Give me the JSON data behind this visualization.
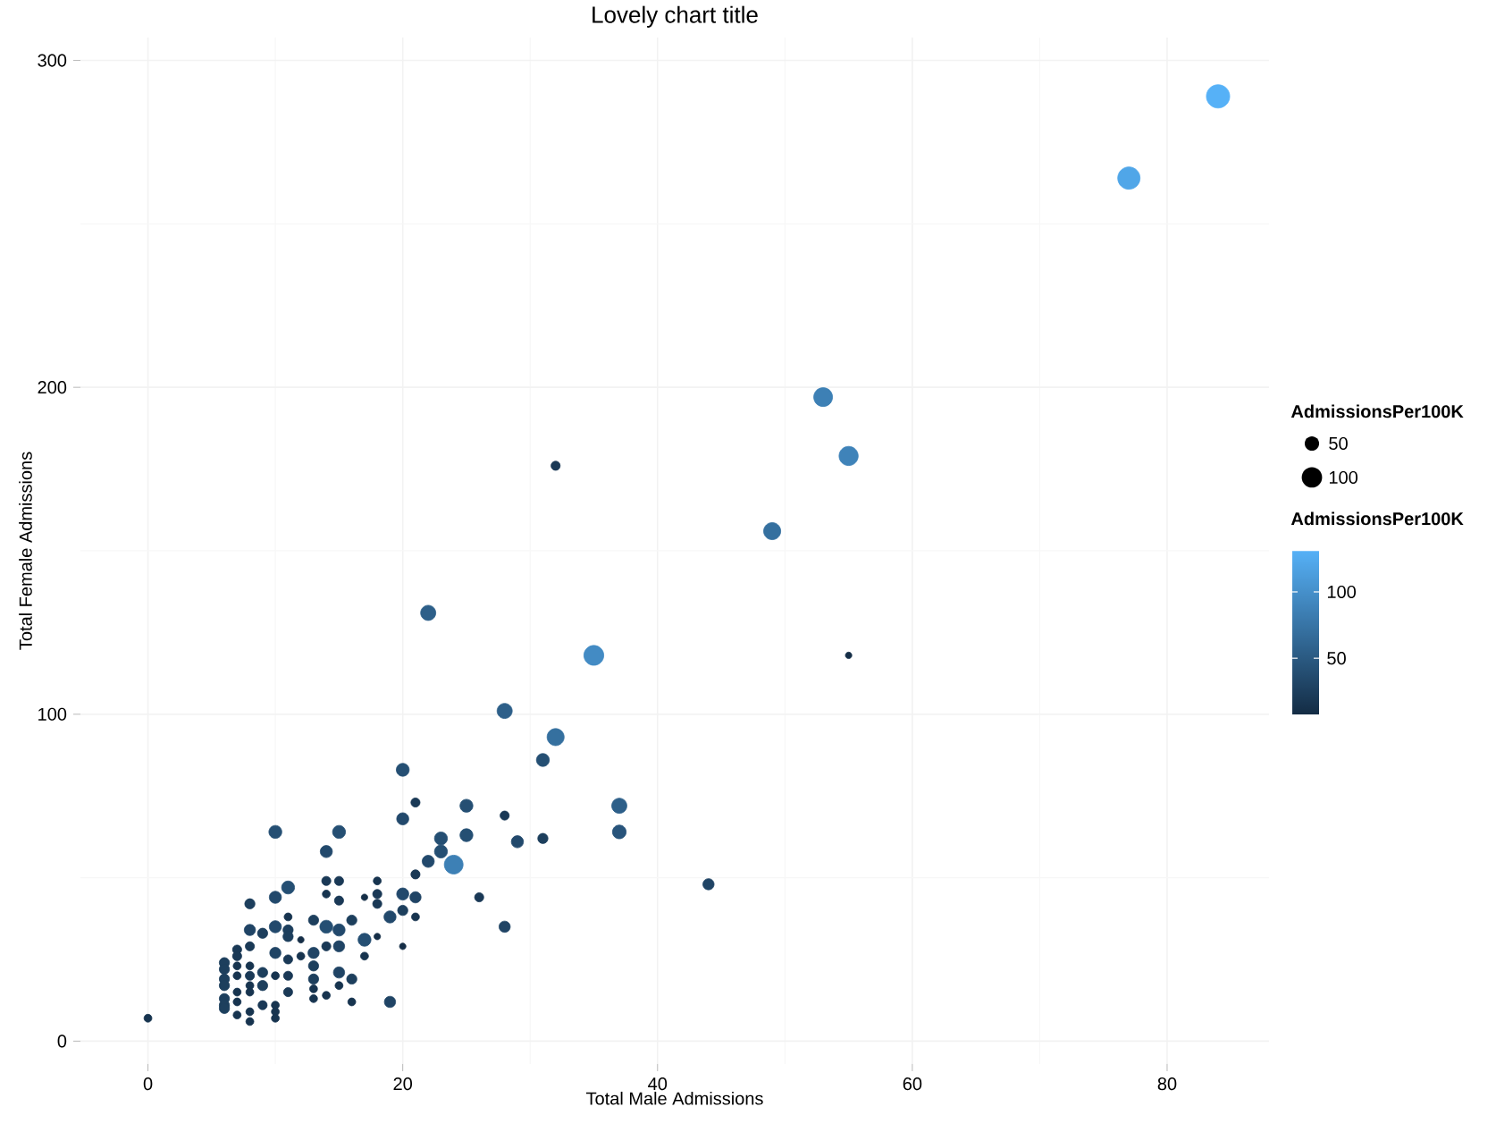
{
  "chart_data": {
    "type": "bubble",
    "title": "Lovely chart title",
    "xlabel": "Total Male Admissions",
    "ylabel": "Total Female Admissions",
    "legend_title": "AdmissionsPer100K",
    "clabel": "AdmissionsPer100K",
    "xlim": [
      -5.3,
      88
    ],
    "ylim": [
      -7,
      307
    ],
    "xticks": [
      0,
      20,
      40,
      60,
      80
    ],
    "yticks": [
      0,
      100,
      200,
      300
    ],
    "grid": true,
    "marker": "circle",
    "clim": [
      7,
      131
    ],
    "cticks": [
      50,
      100
    ],
    "size_legend": [
      50,
      100
    ],
    "x": [
      84,
      77,
      53,
      55,
      49,
      35,
      32,
      28,
      22,
      32,
      55,
      24,
      37,
      37,
      44,
      28,
      0,
      31,
      20,
      21,
      25,
      28,
      20,
      23,
      25,
      29,
      31,
      23,
      22,
      21,
      26,
      20,
      21,
      18,
      18,
      18,
      10,
      15,
      14,
      11,
      14,
      15,
      10,
      8,
      14,
      15,
      17,
      20,
      19,
      21,
      16,
      13,
      11,
      10,
      14,
      15,
      11,
      11,
      8,
      9,
      17,
      18,
      12,
      14,
      15,
      13,
      20,
      17,
      10,
      8,
      7,
      7,
      11,
      12,
      13,
      15,
      16,
      13,
      15,
      14,
      16,
      19,
      13,
      11,
      11,
      10,
      9,
      9,
      8,
      8,
      8,
      8,
      7,
      7,
      7,
      7,
      7,
      6,
      6,
      6,
      6,
      6,
      6,
      6,
      8,
      8,
      9,
      10,
      10,
      10,
      13
    ],
    "values": [
      289,
      264,
      197,
      179,
      156,
      118,
      93,
      101,
      131,
      176,
      118,
      54,
      72,
      64,
      48,
      35,
      7,
      86,
      83,
      73,
      72,
      69,
      68,
      62,
      63,
      61,
      62,
      58,
      55,
      51,
      44,
      45,
      44,
      49,
      45,
      42,
      64,
      64,
      58,
      47,
      49,
      49,
      44,
      42,
      45,
      43,
      44,
      40,
      38,
      38,
      37,
      37,
      38,
      35,
      35,
      34,
      34,
      32,
      34,
      33,
      31,
      32,
      31,
      29,
      29,
      27,
      29,
      26,
      27,
      29,
      28,
      26,
      25,
      26,
      23,
      21,
      19,
      19,
      17,
      14,
      12,
      12,
      13,
      20,
      15,
      20,
      21,
      17,
      23,
      20,
      17,
      15,
      23,
      20,
      15,
      12,
      8,
      24,
      22,
      19,
      17,
      13,
      11,
      10,
      9,
      6,
      11,
      11,
      9,
      7,
      16
    ],
    "sizes": [
      131,
      120,
      85,
      88,
      70,
      95,
      70,
      55,
      55,
      20,
      10,
      85,
      55,
      45,
      30,
      30,
      15,
      40,
      40,
      20,
      40,
      20,
      35,
      40,
      40,
      35,
      25,
      40,
      35,
      20,
      20,
      35,
      30,
      15,
      20,
      20,
      40,
      40,
      35,
      40,
      20,
      20,
      35,
      25,
      15,
      20,
      10,
      25,
      35,
      15,
      25,
      25,
      15,
      35,
      40,
      35,
      25,
      25,
      30,
      25,
      40,
      10,
      10,
      20,
      30,
      30,
      10,
      15,
      30,
      20,
      20,
      20,
      20,
      15,
      25,
      30,
      25,
      25,
      15,
      15,
      15,
      30,
      15,
      20,
      20,
      15,
      25,
      25,
      15,
      20,
      15,
      15,
      15,
      15,
      15,
      15,
      15,
      25,
      25,
      25,
      25,
      25,
      25,
      25,
      15,
      15,
      20,
      15,
      15,
      15,
      15
    ],
    "cvalues": [
      131,
      120,
      85,
      88,
      70,
      95,
      70,
      55,
      55,
      20,
      10,
      85,
      55,
      45,
      30,
      30,
      15,
      40,
      40,
      20,
      40,
      20,
      35,
      40,
      40,
      35,
      25,
      40,
      35,
      20,
      20,
      35,
      30,
      15,
      20,
      20,
      40,
      40,
      35,
      40,
      20,
      20,
      35,
      25,
      15,
      20,
      10,
      25,
      35,
      15,
      25,
      25,
      15,
      35,
      40,
      35,
      25,
      25,
      30,
      25,
      40,
      10,
      10,
      20,
      30,
      30,
      10,
      15,
      30,
      20,
      20,
      20,
      20,
      15,
      25,
      30,
      25,
      25,
      15,
      15,
      15,
      30,
      15,
      20,
      20,
      15,
      25,
      25,
      15,
      20,
      15,
      15,
      15,
      15,
      15,
      15,
      15,
      25,
      25,
      25,
      25,
      25,
      25,
      25,
      15,
      15,
      20,
      15,
      15,
      15,
      15
    ]
  }
}
